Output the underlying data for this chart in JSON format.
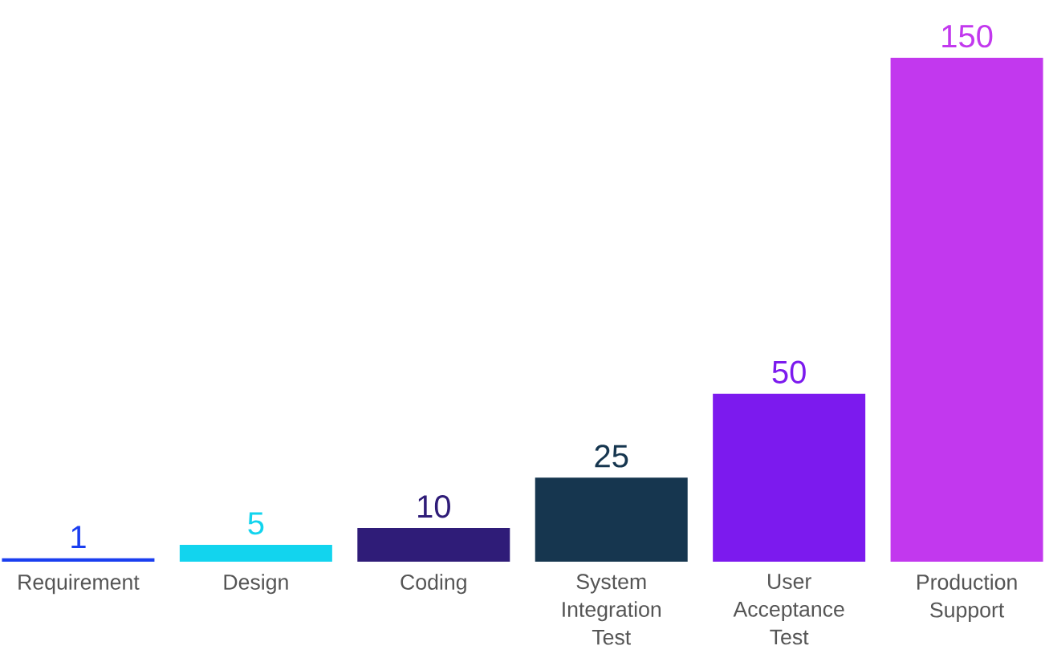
{
  "chart_data": {
    "type": "bar",
    "categories": [
      "Requirement",
      "Design",
      "Coding",
      "System Integration Test",
      "User Acceptance Test",
      "Production Support"
    ],
    "values": [
      1,
      5,
      10,
      25,
      50,
      150
    ],
    "colors": [
      "#1a3ef0",
      "#12d4ee",
      "#2f1c78",
      "#16364f",
      "#7c1aee",
      "#c238ee"
    ],
    "data_labels": true
  }
}
